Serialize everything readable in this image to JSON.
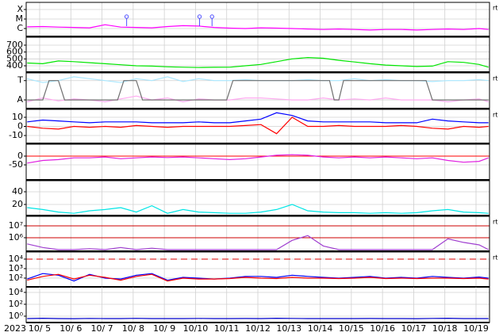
{
  "chart_data": [
    {
      "type": "line",
      "log_y": true,
      "grid": true,
      "corner_label": "rt",
      "xlim": [
        4.567,
        19.433
      ],
      "ylim": [
        1.47e-07,
        0.00056
      ],
      "yticks": [
        {
          "value": 0.0001,
          "label": "X"
        },
        {
          "value": 1e-05,
          "label": "M"
        },
        {
          "value": 1e-06,
          "label": "C"
        }
      ],
      "x": [
        4.6,
        5.1,
        5.6,
        6.1,
        6.6,
        7.1,
        7.6,
        8.1,
        8.6,
        9.1,
        9.6,
        10.1,
        10.6,
        11.1,
        11.6,
        12.1,
        12.6,
        13.1,
        13.6,
        14.1,
        14.6,
        15.1,
        15.6,
        16.1,
        16.6,
        17.1,
        17.6,
        18.1,
        18.6,
        19.1,
        19.4
      ],
      "series": [
        {
          "color": "#ff00ff",
          "values": [
            1.5e-06,
            1.6e-06,
            1.4e-06,
            1.3e-06,
            1.2e-06,
            2.5e-06,
            1.4e-06,
            1.3e-06,
            1.2e-06,
            1.6e-06,
            2e-06,
            1.8e-06,
            1.3e-06,
            1.1e-06,
            1e-06,
            1.2e-06,
            1.1e-06,
            1e-06,
            9e-07,
            8e-07,
            9e-07,
            8e-07,
            7e-07,
            8e-07,
            8e-07,
            7e-07,
            8e-07,
            9e-07,
            8e-07,
            1e-06,
            8e-07
          ]
        }
      ],
      "markers": {
        "color": "#5050ff",
        "x": [
          7.79,
          10.13,
          10.53
        ]
      }
    },
    {
      "type": "line",
      "grid": true,
      "xlim": [
        4.567,
        19.433
      ],
      "ylim": [
        308,
        815
      ],
      "yticks": [
        700,
        600,
        500,
        400
      ],
      "x": [
        4.6,
        5.1,
        5.6,
        6.1,
        6.6,
        7.1,
        7.6,
        8.1,
        8.6,
        9.1,
        9.6,
        10.1,
        10.6,
        11.1,
        11.6,
        12.1,
        12.6,
        13.1,
        13.6,
        14.1,
        14.6,
        15.1,
        15.6,
        16.1,
        16.6,
        17.1,
        17.6,
        18.1,
        18.6,
        19.1,
        19.4
      ],
      "series": [
        {
          "color": "#00e600",
          "values": [
            440,
            430,
            470,
            460,
            445,
            430,
            415,
            400,
            395,
            385,
            380,
            375,
            378,
            380,
            400,
            420,
            460,
            500,
            520,
            510,
            480,
            455,
            430,
            410,
            400,
            390,
            395,
            460,
            450,
            420,
            380
          ]
        }
      ]
    },
    {
      "type": "line",
      "grid": true,
      "corner_label": "rt",
      "xlim": [
        4.567,
        19.433
      ],
      "ylim": [
        -0.45,
        1.4
      ],
      "yticks": [
        {
          "value": 1,
          "label": "T"
        },
        {
          "value": 0,
          "label": "A"
        }
      ],
      "x": [
        4.6,
        5.1,
        5.6,
        6.1,
        6.6,
        7.1,
        7.6,
        8.1,
        8.6,
        9.1,
        9.6,
        10.1,
        10.6,
        11.1,
        11.6,
        12.1,
        12.6,
        13.1,
        13.6,
        14.1,
        14.6,
        15.1,
        15.6,
        16.1,
        16.6,
        17.1,
        17.6,
        18.1,
        18.6,
        19.1,
        19.4
      ],
      "series": [
        {
          "color": "#aae8ff",
          "values": [
            1.1,
            0.9,
            1.0,
            1.2,
            1.1,
            1.0,
            0.9,
            1.1,
            1.0,
            1.2,
            0.95,
            1.1,
            1.0,
            1.0,
            1.05,
            1.0,
            1.0,
            1.0,
            1.05,
            1.0,
            1.0,
            1.1,
            1.0,
            1.05,
            1.0,
            1.0,
            0.95,
            1.0,
            1.0,
            1.05,
            1.0
          ]
        },
        {
          "color": "#ffaaf0",
          "values": [
            -0.1,
            0.1,
            -0.05,
            0.05,
            0,
            -0.1,
            0.05,
            0.2,
            0,
            0.1,
            -0.1,
            0.05,
            0,
            0,
            0.1,
            0.1,
            0.05,
            0,
            0,
            0.1,
            0,
            0.05,
            0,
            0.1,
            0,
            0,
            0,
            -0.1,
            0,
            0.05,
            -0.1
          ]
        },
        {
          "color": "#707070",
          "x": [
            4.6,
            5.1,
            5.3,
            5.6,
            5.8,
            7.5,
            7.7,
            8.1,
            8.3,
            11.0,
            11.2,
            14.3,
            14.45,
            14.6,
            14.75,
            17.4,
            17.6,
            19.4
          ],
          "values": [
            0,
            0,
            1,
            1,
            0,
            0,
            1,
            1,
            0,
            0,
            1,
            1,
            0,
            0,
            1,
            1,
            0,
            0
          ]
        }
      ]
    },
    {
      "type": "line",
      "grid": true,
      "corner_label": "rt",
      "xlim": [
        4.567,
        19.433
      ],
      "ylim": [
        -18.7,
        18.7
      ],
      "yticks": [
        10,
        0,
        -10
      ],
      "x": [
        4.6,
        5.1,
        5.6,
        6.1,
        6.6,
        7.1,
        7.6,
        8.1,
        8.6,
        9.1,
        9.6,
        10.1,
        10.6,
        11.1,
        11.6,
        12.1,
        12.6,
        13.1,
        13.6,
        14.1,
        14.6,
        15.1,
        15.6,
        16.1,
        16.6,
        17.1,
        17.6,
        18.1,
        18.6,
        19.1,
        19.4
      ],
      "series": [
        {
          "color": "#0000ff",
          "values": [
            5,
            7,
            6,
            5,
            4,
            5,
            5,
            5,
            4,
            4,
            4,
            5,
            4,
            4,
            6,
            8,
            15,
            12,
            6,
            5,
            5,
            5,
            5,
            4,
            4,
            4,
            8,
            6,
            5,
            4,
            4
          ]
        },
        {
          "color": "#ff0000",
          "values": [
            0,
            -2,
            -3,
            0,
            -1,
            0,
            -1,
            1,
            0,
            -1,
            0,
            0,
            0,
            0,
            1,
            2,
            -8,
            10,
            0,
            0,
            1,
            0,
            0,
            0,
            1,
            0,
            -2,
            -3,
            0,
            -1,
            0
          ]
        }
      ]
    },
    {
      "type": "line",
      "grid": true,
      "xlim": [
        4.567,
        19.433
      ],
      "ylim": [
        -136,
        68
      ],
      "yticks": [
        0,
        -50
      ],
      "hlines": [
        {
          "value": 0,
          "color": "#ff0000"
        }
      ],
      "x": [
        4.6,
        5.1,
        5.6,
        6.1,
        6.6,
        7.1,
        7.6,
        8.1,
        8.6,
        9.1,
        9.6,
        10.1,
        10.6,
        11.1,
        11.6,
        12.1,
        12.6,
        13.1,
        13.6,
        14.1,
        14.6,
        15.1,
        15.6,
        16.1,
        16.6,
        17.1,
        17.6,
        18.1,
        18.6,
        19.1,
        19.4
      ],
      "series": [
        {
          "color": "#e020e0",
          "values": [
            -40,
            -25,
            -20,
            -10,
            -10,
            -5,
            -15,
            -10,
            -5,
            -8,
            -5,
            -10,
            -15,
            -20,
            -15,
            -5,
            5,
            8,
            5,
            -5,
            -10,
            -5,
            -10,
            -5,
            -10,
            -15,
            -10,
            -25,
            -35,
            -30,
            -10
          ]
        }
      ]
    },
    {
      "type": "line",
      "grid": true,
      "xlim": [
        4.567,
        19.433
      ],
      "ylim": [
        2.5,
        57.5
      ],
      "yticks": [
        40,
        20
      ],
      "x": [
        4.6,
        5.1,
        5.6,
        6.1,
        6.6,
        7.1,
        7.6,
        8.1,
        8.6,
        9.1,
        9.6,
        10.1,
        10.6,
        11.1,
        11.6,
        12.1,
        12.6,
        13.1,
        13.6,
        14.1,
        14.6,
        15.1,
        15.6,
        16.1,
        16.6,
        17.1,
        17.6,
        18.1,
        18.6,
        19.1,
        19.4
      ],
      "series": [
        {
          "color": "#00e5e5",
          "values": [
            15,
            12,
            8,
            6,
            10,
            12,
            15,
            8,
            18,
            6,
            12,
            8,
            7,
            6,
            6,
            8,
            12,
            20,
            10,
            8,
            7,
            7,
            6,
            7,
            6,
            7,
            10,
            12,
            8,
            7,
            6
          ]
        }
      ]
    },
    {
      "type": "line",
      "log_y": true,
      "grid": true,
      "corner_label": "rt",
      "xlim": [
        4.567,
        19.433
      ],
      "ylim": [
        73000,
        63000000
      ],
      "yticks": [
        {
          "value": 10000000,
          "label": "10⁷"
        },
        {
          "value": 1000000,
          "label": "10⁶"
        }
      ],
      "hlines": [
        {
          "value": 10000000,
          "color": "#cc0000"
        },
        {
          "value": 1000000,
          "color": "#cc0000"
        }
      ],
      "x": [
        4.6,
        5.1,
        5.6,
        6.1,
        6.6,
        7.1,
        7.6,
        8.1,
        8.6,
        9.1,
        9.6,
        10.1,
        10.6,
        11.1,
        11.6,
        12.1,
        12.6,
        13.1,
        13.6,
        14.1,
        14.6,
        15.1,
        15.6,
        16.1,
        16.6,
        17.1,
        17.6,
        18.1,
        18.6,
        19.1,
        19.4
      ],
      "series": [
        {
          "color": "#a040d0",
          "values": [
            300000,
            150000,
            100000,
            100000,
            120000,
            100000,
            150000,
            100000,
            130000,
            100000,
            100000,
            100000,
            100000,
            100000,
            100000,
            100000,
            100000,
            600000,
            1500000,
            200000,
            100000,
            100000,
            100000,
            100000,
            100000,
            100000,
            100000,
            800000,
            400000,
            250000,
            100000
          ]
        }
      ]
    },
    {
      "type": "line",
      "log_y": true,
      "grid": true,
      "corner_label": "rt",
      "xlim": [
        4.567,
        19.433
      ],
      "ylim": [
        12,
        56000
      ],
      "yticks": [
        {
          "value": 10000,
          "label": "10⁴"
        },
        {
          "value": 1000,
          "label": "10³"
        },
        {
          "value": 100,
          "label": "10²"
        }
      ],
      "hlines": [
        {
          "value": 10000,
          "color": "#dd0000",
          "dash": true
        }
      ],
      "x": [
        4.6,
        5.1,
        5.6,
        6.1,
        6.6,
        7.1,
        7.6,
        8.1,
        8.6,
        9.1,
        9.6,
        10.1,
        10.6,
        11.1,
        11.6,
        12.1,
        12.6,
        13.1,
        13.6,
        14.1,
        14.6,
        15.1,
        15.6,
        16.1,
        16.6,
        17.1,
        17.6,
        18.1,
        18.6,
        19.1,
        19.4
      ],
      "series": [
        {
          "color": "#0000ff",
          "values": [
            80,
            300,
            200,
            50,
            250,
            100,
            80,
            200,
            300,
            60,
            120,
            100,
            80,
            100,
            150,
            150,
            120,
            200,
            150,
            120,
            100,
            120,
            150,
            100,
            120,
            100,
            150,
            120,
            100,
            130,
            100
          ]
        },
        {
          "color": "#ff0000",
          "values": [
            60,
            150,
            250,
            80,
            200,
            120,
            60,
            150,
            250,
            50,
            100,
            80,
            80,
            90,
            120,
            100,
            90,
            120,
            100,
            100,
            90,
            100,
            120,
            90,
            100,
            90,
            100,
            100,
            90,
            100,
            80
          ]
        }
      ]
    },
    {
      "type": "line",
      "log_y": true,
      "grid": true,
      "xlim": [
        4.567,
        19.433
      ],
      "ylim": [
        0.085,
        85000
      ],
      "yticks": [
        {
          "value": 10000,
          "label": "10⁴"
        },
        {
          "value": 100,
          "label": "10²"
        },
        {
          "value": 1,
          "label": "10⁰"
        }
      ],
      "x": [
        4.6,
        5.1,
        5.6,
        6.1,
        6.6,
        7.1,
        7.6,
        8.1,
        8.6,
        9.1,
        9.6,
        10.1,
        10.6,
        11.1,
        11.6,
        12.1,
        12.6,
        13.1,
        13.6,
        14.1,
        14.6,
        15.1,
        15.6,
        16.1,
        16.6,
        17.1,
        17.6,
        18.1,
        18.6,
        19.1,
        19.4
      ],
      "series": [
        {
          "color": "#0000cc",
          "values": [
            0.4,
            0.45,
            0.4,
            0.38,
            0.42,
            0.4,
            0.4,
            0.43,
            0.4,
            0.39,
            0.4,
            0.42,
            0.4,
            0.4,
            0.41,
            0.4,
            0.45,
            0.42,
            0.4,
            0.4,
            0.39,
            0.4,
            0.41,
            0.4,
            0.4,
            0.38,
            0.42,
            0.44,
            0.4,
            0.4,
            0.4
          ]
        }
      ],
      "xlabel": "2023",
      "xticks": [
        {
          "value": 5,
          "label": "10/ 5"
        },
        {
          "value": 6,
          "label": "10/ 6"
        },
        {
          "value": 7,
          "label": "10/ 7"
        },
        {
          "value": 8,
          "label": "10/ 8"
        },
        {
          "value": 9,
          "label": "10/ 9"
        },
        {
          "value": 10,
          "label": "10/10"
        },
        {
          "value": 11,
          "label": "10/11"
        },
        {
          "value": 12,
          "label": "10/12"
        },
        {
          "value": 13,
          "label": "10/13"
        },
        {
          "value": 14,
          "label": "10/14"
        },
        {
          "value": 15,
          "label": "10/15"
        },
        {
          "value": 16,
          "label": "10/16"
        },
        {
          "value": 17,
          "label": "10/17"
        },
        {
          "value": 18,
          "label": "10/18"
        },
        {
          "value": 19,
          "label": "10/19"
        }
      ]
    }
  ]
}
